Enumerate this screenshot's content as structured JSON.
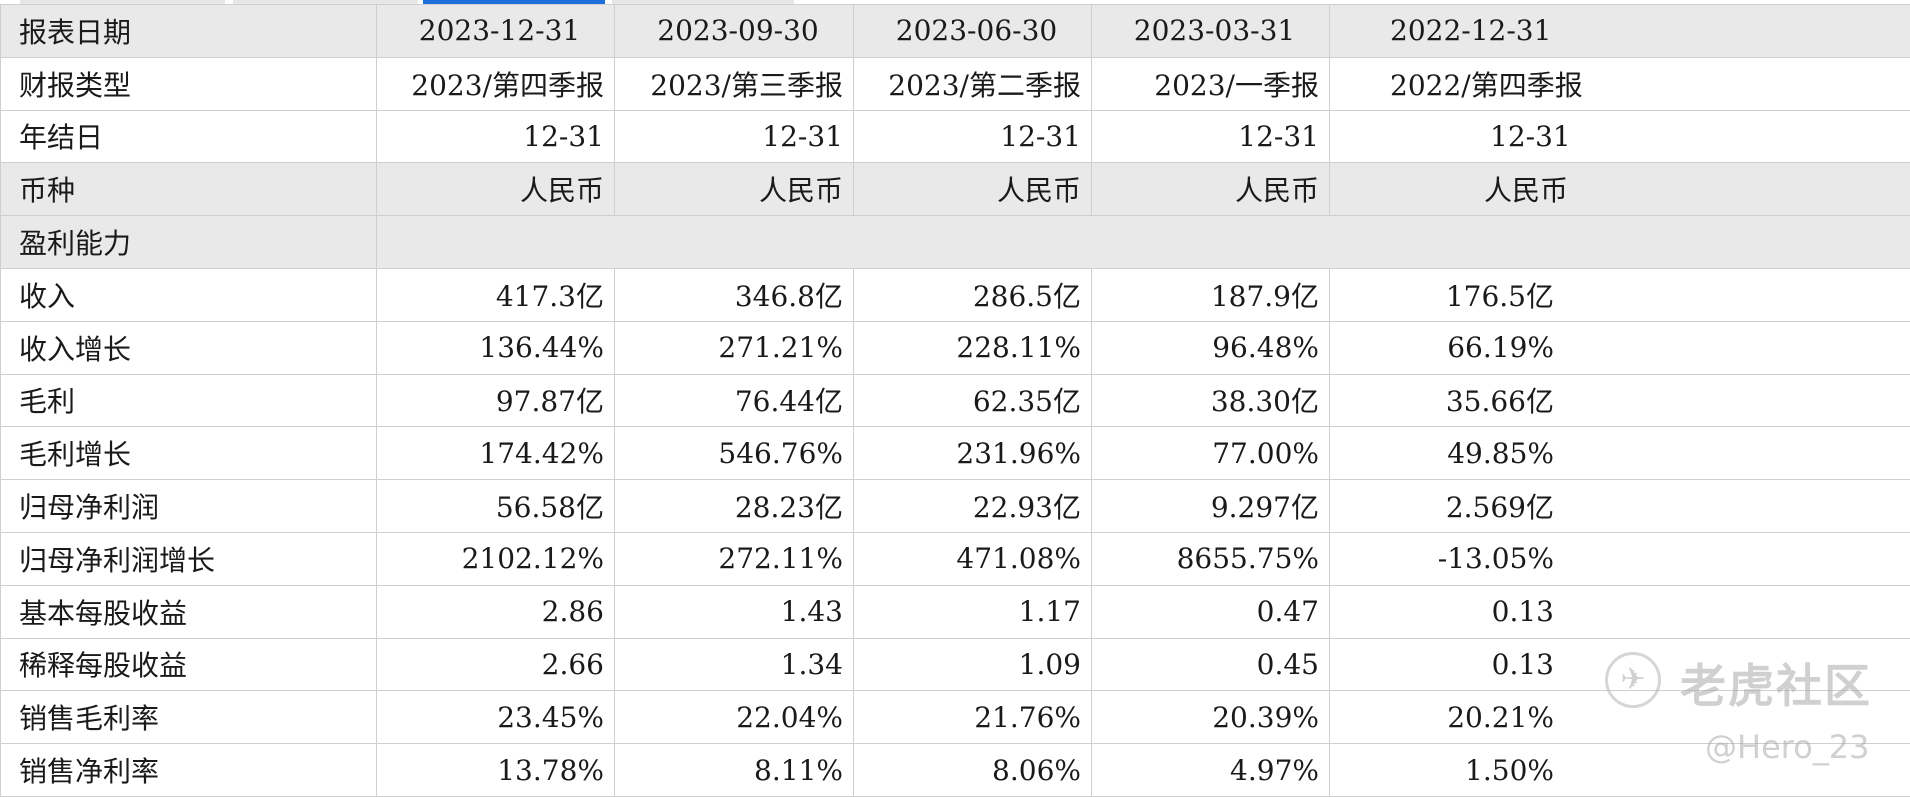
{
  "tabs": {
    "colors": {
      "inactive": "#e6e6e6",
      "active": "#1e6fd9"
    }
  },
  "table": {
    "header": {
      "label": "报表日期",
      "columns": [
        "2023-12-31",
        "2023-09-30",
        "2023-06-30",
        "2023-03-31",
        "2022-12-31"
      ]
    },
    "report_type": {
      "label": "财报类型",
      "values": [
        "2023/第四季报",
        "2023/第三季报",
        "2023/第二季报",
        "2023/一季报",
        "2022/第四季报"
      ]
    },
    "fiscal_year_end": {
      "label": "年结日",
      "values": [
        "12-31",
        "12-31",
        "12-31",
        "12-31",
        "12-31"
      ]
    },
    "currency": {
      "label": "币种",
      "values": [
        "人民币",
        "人民币",
        "人民币",
        "人民币",
        "人民币"
      ]
    },
    "section": {
      "label": "盈利能力"
    },
    "rows": [
      {
        "label": "收入",
        "values": [
          "417.3亿",
          "346.8亿",
          "286.5亿",
          "187.9亿",
          "176.5亿"
        ]
      },
      {
        "label": "收入增长",
        "values": [
          "136.44%",
          "271.21%",
          "228.11%",
          "96.48%",
          "66.19%"
        ]
      },
      {
        "label": "毛利",
        "values": [
          "97.87亿",
          "76.44亿",
          "62.35亿",
          "38.30亿",
          "35.66亿"
        ]
      },
      {
        "label": "毛利增长",
        "values": [
          "174.42%",
          "546.76%",
          "231.96%",
          "77.00%",
          "49.85%"
        ]
      },
      {
        "label": "归母净利润",
        "values": [
          "56.58亿",
          "28.23亿",
          "22.93亿",
          "9.297亿",
          "2.569亿"
        ]
      },
      {
        "label": "归母净利润增长",
        "values": [
          "2102.12%",
          "272.11%",
          "471.08%",
          "8655.75%",
          "-13.05%"
        ]
      },
      {
        "label": "基本每股收益",
        "values": [
          "2.86",
          "1.43",
          "1.17",
          "0.47",
          "0.13"
        ]
      },
      {
        "label": "稀释每股收益",
        "values": [
          "2.66",
          "1.34",
          "1.09",
          "0.45",
          "0.13"
        ]
      },
      {
        "label": "销售毛利率",
        "values": [
          "23.45%",
          "22.04%",
          "21.76%",
          "20.39%",
          "20.21%"
        ]
      },
      {
        "label": "销售净利率",
        "values": [
          "13.78%",
          "8.11%",
          "8.06%",
          "4.97%",
          "1.50%"
        ]
      }
    ]
  },
  "watermark": {
    "logo_glyph": "✈",
    "site": "老虎社区",
    "user": "@Hero_23"
  }
}
